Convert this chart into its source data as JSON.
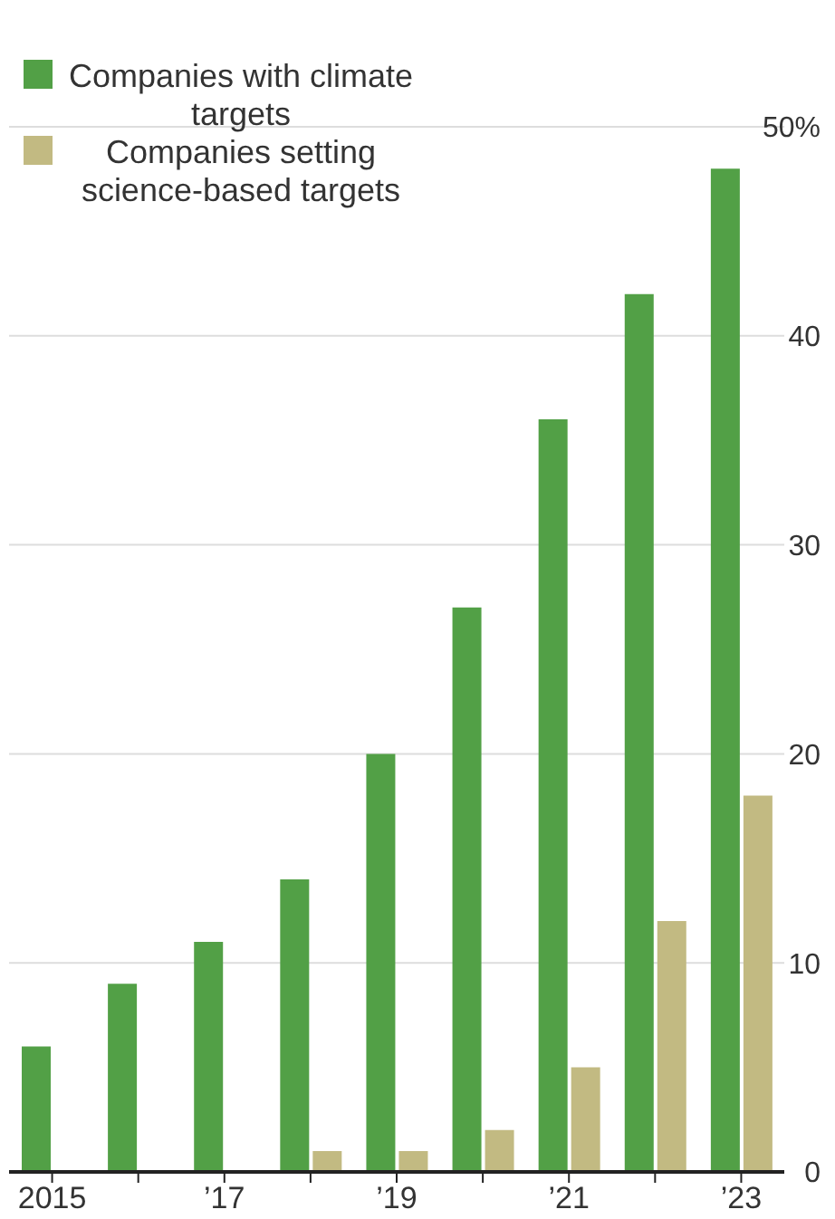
{
  "chart_data": {
    "type": "bar",
    "categories": [
      "2015",
      null,
      "’17",
      null,
      "’19",
      null,
      "’21",
      null,
      "’23"
    ],
    "series": [
      {
        "name": "Companies with climate targets",
        "color": "#52a046",
        "values": [
          6,
          9,
          11,
          14,
          20,
          27,
          36,
          42,
          48
        ]
      },
      {
        "name": "Companies setting science-based targets",
        "color": "#c2ba82",
        "values": [
          null,
          null,
          null,
          1,
          1,
          2,
          5,
          12,
          18
        ]
      }
    ],
    "ylim": [
      0,
      50
    ],
    "yticks": [
      0,
      10,
      20,
      30,
      40,
      {
        "value": 50,
        "label": "50%"
      }
    ],
    "grid": "y",
    "legend": "top left"
  }
}
